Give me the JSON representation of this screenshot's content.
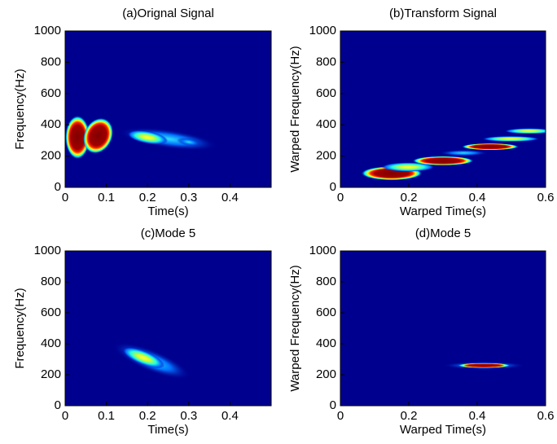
{
  "chart_data": [
    {
      "type": "spectrogram",
      "title": "(a)Orignal Signal",
      "x_label": "Time(s)",
      "y_label": "Frequency(Hz)",
      "xlim": [
        0,
        0.5
      ],
      "xticks": [
        0,
        0.1,
        0.2,
        0.3,
        0.4
      ],
      "ylim": [
        0,
        1000
      ],
      "yticks": [
        0,
        200,
        400,
        600,
        800,
        1000
      ]
    },
    {
      "type": "spectrogram",
      "title": "(b)Transform Signal",
      "x_label": "Warped Time(s)",
      "y_label": "Warped Frequency(Hz)",
      "xlim": [
        0,
        0.6
      ],
      "xticks": [
        0,
        0.2,
        0.4,
        0.6
      ],
      "ylim": [
        0,
        1000
      ],
      "yticks": [
        0,
        200,
        400,
        600,
        800,
        1000
      ]
    },
    {
      "type": "spectrogram",
      "title": "(c)Mode 5",
      "x_label": "Time(s)",
      "y_label": "Frequency(Hz)",
      "xlim": [
        0,
        0.5
      ],
      "xticks": [
        0,
        0.1,
        0.2,
        0.3,
        0.4
      ],
      "ylim": [
        0,
        1000
      ],
      "yticks": [
        0,
        200,
        400,
        600,
        800,
        1000
      ]
    },
    {
      "type": "spectrogram",
      "title": "(d)Mode 5",
      "x_label": "Warped Time(s)",
      "y_label": "Warped Frequency(Hz)",
      "xlim": [
        0,
        0.6
      ],
      "xticks": [
        0,
        0.2,
        0.4,
        0.6
      ],
      "ylim": [
        0,
        1000
      ],
      "yticks": [
        0,
        200,
        400,
        600,
        800,
        1000
      ]
    }
  ]
}
